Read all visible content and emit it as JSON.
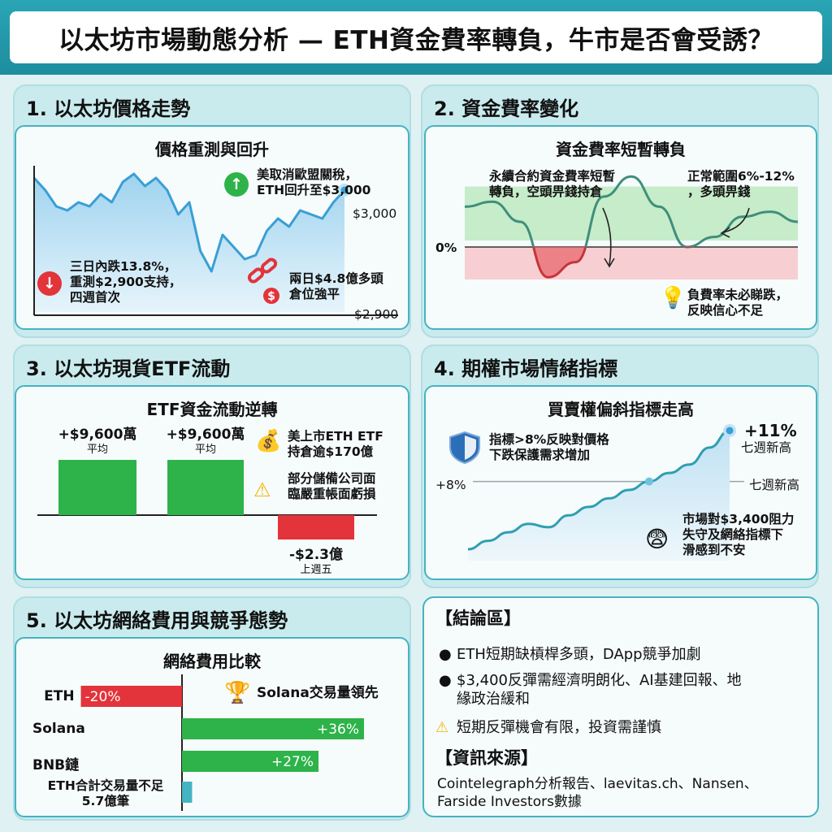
{
  "title": "以太坊市場動態分析 — ETH資金費率轉負，牛市是否會受誘？",
  "colors": {
    "green": "#2db34a",
    "red": "#e2343a",
    "blue": "#3a9fd4",
    "teal": "#45b3c1"
  },
  "s1": {
    "heading": "1. 以太坊價格走勢",
    "card_title": "價格重測與回升",
    "ann_up": "美取消歐盟關稅，\nETH回升至$3,000",
    "ann_down": "三日內跌13.8%，\n重測$2,900支持，\n四週首次",
    "ann_liq": "兩日$4.8億多頭\n倉位強平",
    "label_top": "$3,000",
    "label_bottom": "$2,900",
    "icons": [
      "arrow-up-icon",
      "arrow-down-icon",
      "broken-chain-icon"
    ]
  },
  "s2": {
    "heading": "2. 資金費率變化",
    "card_title": "資金費率短暫轉負",
    "ann_neg": "永續合約資金費率短暫\n轉負，空頭畀錢持倉",
    "ann_normal": "正常範圍6%-12%\n，多頭畀錢",
    "zero": "0%",
    "note": "負費率未必睇跌，\n反映信心不足",
    "icons": [
      "lightbulb-icon"
    ]
  },
  "s3": {
    "heading": "3. 以太坊現貨ETF流動",
    "card_title": "ETF資金流動逆轉",
    "note1": "美上市ETH ETF\n持倉逾$170億",
    "note2": "部分儲備公司面\n臨嚴重帳面虧損",
    "icons": [
      "money-bag-icon",
      "warning-icon"
    ]
  },
  "s4": {
    "heading": "4. 期權市場情緒指標",
    "card_title": "買賣權偏斜指標走高",
    "peak": "+11%",
    "peak_sub": "七週新高",
    "ref": "+8%",
    "ref_right": "七週新高",
    "ann_shield": "指標>8%反映對價格\n下跌保護需求增加",
    "ann_face": "市場對$3,400阻力\n失守及網絡指標下\n滑感到不安",
    "icons": [
      "shield-icon",
      "anxious-face-icon"
    ]
  },
  "s5": {
    "heading": "5. 以太坊網絡費用與競爭態勢",
    "card_title": "網絡費用比較",
    "trophy": "Solana交易量領先",
    "extra_label": "ETH合計交易量不足\n5.7億筆",
    "icons": [
      "trophy-icon"
    ]
  },
  "conclusion": {
    "heading": "【結論區】",
    "items": [
      "ETH短期缺槓桿多頭，DApp競爭加劇",
      "$3,400反彈需經濟明朗化、AI基建回報、地\n緣政治緩和"
    ],
    "warning": "短期反彈機會有限，投資需謹慎",
    "source_heading": "【資訊來源】",
    "source": "Cointelegraph分析報告、laevitas.ch、Nansen、\nFarside Investors數據",
    "icons": [
      "warning-icon"
    ]
  },
  "chart_data": [
    {
      "type": "area",
      "title": "價格重測與回升",
      "series": [
        {
          "values": [
            3045,
            3030,
            3010,
            3005,
            3015,
            3010,
            3025,
            3015,
            3040,
            3050,
            3035,
            3045,
            3030,
            3000,
            3015,
            2955,
            2930,
            2975,
            2960,
            2945,
            2950,
            2980,
            2995,
            2985,
            3005,
            3000,
            2995,
            3015,
            3030
          ]
        }
      ],
      "annotations": [
        "$3,000",
        "$2,900"
      ]
    },
    {
      "type": "line",
      "title": "資金費率短暫轉負",
      "zero_label": "0%",
      "bands": [
        {
          "label": "正常範圍6%-12%",
          "range": [
            6,
            12
          ]
        }
      ],
      "series": [
        {
          "values": [
            8,
            9,
            5,
            -6,
            -3,
            10,
            14,
            8,
            0,
            2,
            6,
            7,
            5
          ]
        }
      ]
    },
    {
      "type": "bar",
      "title": "ETF資金流動逆轉",
      "unit": "萬美元",
      "categories": [
        "平均",
        "平均",
        "上週五"
      ],
      "values": [
        9600,
        9600,
        -23000
      ],
      "labels": [
        "+$9,600萬",
        "+$9,600萬",
        "-$2.3億"
      ]
    },
    {
      "type": "area",
      "title": "買賣權偏斜指標走高",
      "series": [
        {
          "values": [
            4,
            4.5,
            5,
            5.5,
            5.3,
            6,
            6.5,
            7,
            7.5,
            8,
            8.5,
            9,
            10,
            11
          ]
        }
      ],
      "reference_line": 8
    },
    {
      "type": "bar",
      "orientation": "horizontal",
      "title": "網絡費用比較",
      "categories": [
        "ETH",
        "Solana",
        "BNB鏈",
        "ETH合計交易量不足\n5.7億筆"
      ],
      "values": [
        -20,
        36,
        27,
        2
      ],
      "labels": [
        "-20%",
        "+36%",
        "+27%",
        ""
      ]
    }
  ]
}
